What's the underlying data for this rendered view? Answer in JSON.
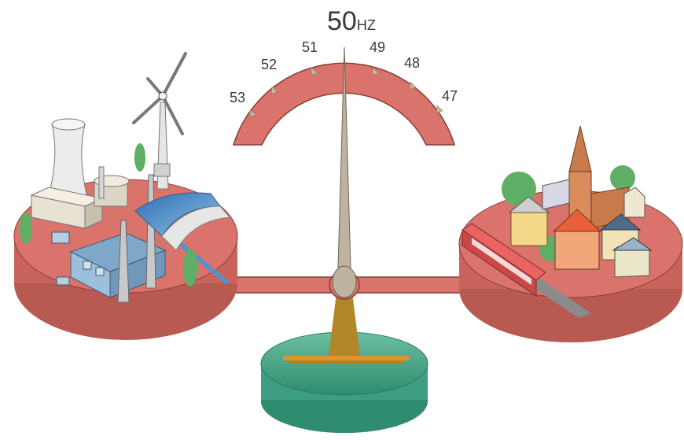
{
  "gauge": {
    "main_value": "50",
    "main_unit": "HZ",
    "ticks": [
      "53",
      "52",
      "51",
      "49",
      "48",
      "47"
    ],
    "colors": {
      "arc": "#d9736b",
      "arc_stroke": "#8a3d35",
      "needle": "#bdb3a0"
    }
  },
  "left_platform": {
    "represents": "generation",
    "icons": [
      "cooling-tower-icon",
      "wind-turbine-icon",
      "factory-icon",
      "hydro-dam-icon"
    ],
    "color": "#d9736b"
  },
  "right_platform": {
    "represents": "consumption",
    "icons": [
      "church-icon",
      "houses-icon",
      "train-icon"
    ],
    "color": "#d9736b"
  },
  "base": {
    "color": "#3e9e83"
  }
}
